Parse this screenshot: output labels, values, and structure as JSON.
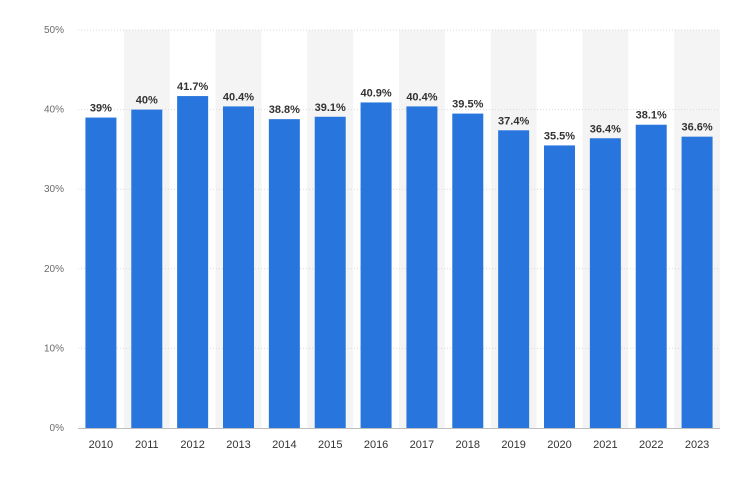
{
  "colors": {
    "bar": "#2876dd",
    "band": "#f4f4f4"
  },
  "chart_data": {
    "type": "bar",
    "title": "",
    "xlabel": "",
    "ylabel": "",
    "categories": [
      "2010",
      "2011",
      "2012",
      "2013",
      "2014",
      "2015",
      "2016",
      "2017",
      "2018",
      "2019",
      "2020",
      "2021",
      "2022",
      "2023"
    ],
    "values": [
      39,
      40,
      41.7,
      40.4,
      38.8,
      39.1,
      40.9,
      40.4,
      39.5,
      37.4,
      35.5,
      36.4,
      38.1,
      36.6
    ],
    "data_labels": [
      "39%",
      "40%",
      "41.7%",
      "40.4%",
      "38.8%",
      "39.1%",
      "40.9%",
      "40.4%",
      "39.5%",
      "37.4%",
      "35.5%",
      "36.4%",
      "38.1%",
      "36.6%"
    ],
    "ylim": [
      0,
      50
    ],
    "yticks": [
      0,
      10,
      20,
      30,
      40,
      50
    ],
    "ytick_labels": [
      "0%",
      "10%",
      "20%",
      "30%",
      "40%",
      "50%"
    ],
    "grid": true,
    "legend": "none"
  }
}
